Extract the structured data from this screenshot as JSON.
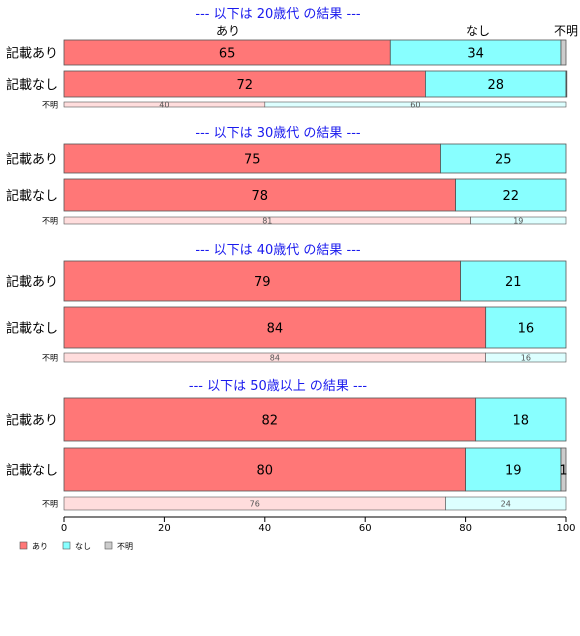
{
  "chart_data": {
    "type": "bar",
    "orientation": "horizontal",
    "stacked": "percent",
    "xlim": [
      0,
      100
    ],
    "x_ticks": [
      "0",
      "20",
      "40",
      "60",
      "80",
      "100"
    ],
    "header_labels": {
      "ari": "あり",
      "nashi": "なし",
      "fumei": "不明"
    },
    "legend": [
      {
        "name": "あり",
        "color": "#ff7777"
      },
      {
        "name": "なし",
        "color": "#88ffff"
      },
      {
        "name": "不明",
        "color": "#cccccc"
      }
    ],
    "legend_position": "bottom-left",
    "colors": {
      "main": [
        "#ff7777",
        "#88ffff",
        "#cccccc"
      ],
      "light": [
        "#ffdddd",
        "#ddffff",
        "#eeeeee"
      ],
      "title": "#1a1aee",
      "border": "#555555"
    },
    "groups": [
      {
        "title": "--- 以下は 20歳代 の結果 ---",
        "rows": [
          {
            "label": "記載あり",
            "kind": "main",
            "values": [
              65,
              34,
              1
            ],
            "labels": [
              "65",
              "34",
              ""
            ]
          },
          {
            "label": "記載なし",
            "kind": "main",
            "values": [
              72,
              28,
              0.6
            ],
            "labels": [
              "72",
              "28",
              ""
            ]
          },
          {
            "label": "不明",
            "kind": "thin",
            "values": [
              40,
              60,
              0
            ],
            "labels": [
              "40",
              "60",
              ""
            ]
          }
        ]
      },
      {
        "title": "--- 以下は 30歳代 の結果 ---",
        "rows": [
          {
            "label": "記載あり",
            "kind": "main",
            "values": [
              75,
              25,
              0
            ],
            "labels": [
              "75",
              "25",
              ""
            ]
          },
          {
            "label": "記載なし",
            "kind": "main",
            "values": [
              78,
              22,
              0
            ],
            "labels": [
              "78",
              "22",
              ""
            ]
          },
          {
            "label": "不明",
            "kind": "thin",
            "values": [
              81,
              19,
              0
            ],
            "labels": [
              "81",
              "19",
              ""
            ]
          }
        ]
      },
      {
        "title": "--- 以下は 40歳代 の結果 ---",
        "rows": [
          {
            "label": "記載あり",
            "kind": "main",
            "values": [
              79,
              21,
              0
            ],
            "labels": [
              "79",
              "21",
              ""
            ]
          },
          {
            "label": "記載なし",
            "kind": "main",
            "values": [
              84,
              16,
              0
            ],
            "labels": [
              "84",
              "16",
              ""
            ]
          },
          {
            "label": "不明",
            "kind": "thin",
            "values": [
              84,
              16,
              0
            ],
            "labels": [
              "84",
              "16",
              ""
            ]
          }
        ]
      },
      {
        "title": "--- 以下は 50歳以上 の結果 ---",
        "rows": [
          {
            "label": "記載あり",
            "kind": "main",
            "values": [
              82,
              18,
              0
            ],
            "labels": [
              "82",
              "18",
              ""
            ]
          },
          {
            "label": "記載なし",
            "kind": "main",
            "values": [
              80,
              19,
              1
            ],
            "labels": [
              "80",
              "19",
              "1"
            ]
          },
          {
            "label": "不明",
            "kind": "thin",
            "values": [
              76,
              24,
              0
            ],
            "labels": [
              "76",
              "24",
              ""
            ]
          }
        ]
      }
    ]
  }
}
